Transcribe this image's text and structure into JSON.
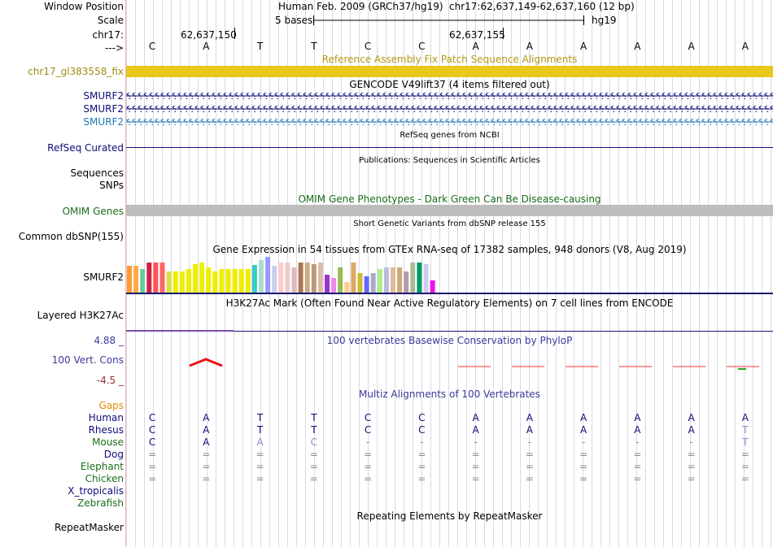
{
  "header": {
    "window_position_label": "Window Position",
    "scale_label": "Scale",
    "chrom_label": "chr17:",
    "arrow_label": "--->",
    "assembly_text": "Human Feb. 2009 (GRCh37/hg19)",
    "position_text": "chr17:62,637,149-62,637,160 (12 bp)",
    "scale_text": "5 bases",
    "scale_db": "hg19",
    "coord_1": "62,637,150",
    "coord_2": "62,637,155"
  },
  "sequence": [
    "C",
    "A",
    "T",
    "T",
    "C",
    "C",
    "A",
    "A",
    "A",
    "A",
    "A",
    "A"
  ],
  "tracks": {
    "fix_patch": {
      "title": "Reference Assembly Fix Patch Sequence Alignments",
      "label": "chr17_gl383558_fix",
      "color": "#e8c81c"
    },
    "gencode": {
      "title": "GENCODE V49lift37 (4 items filtered out)",
      "items": [
        "SMURF2",
        "SMURF2",
        "SMURF2"
      ],
      "colors": [
        "#0c0c78",
        "#0c0c78",
        "#1e78b4"
      ]
    },
    "refseq": {
      "title": "RefSeq genes from NCBI",
      "label": "RefSeq Curated"
    },
    "publications": {
      "title": "Publications: Sequences in Scientific Articles",
      "labels": [
        "Sequences",
        "SNPs"
      ]
    },
    "omim": {
      "title": "OMIM Gene Phenotypes - Dark Green Can Be Disease-causing",
      "label": "OMIM Genes"
    },
    "dbsnp": {
      "title": "Short Genetic Variants from dbSNP release 155",
      "label": "Common dbSNP(155)"
    },
    "gtex": {
      "title": "Gene Expression in 54 tissues from GTEx RNA-seq of 17382 samples, 948 donors (V8, Aug 2019)",
      "label": "SMURF2",
      "bars": [
        {
          "v": 0.75,
          "c": "#ff9933"
        },
        {
          "v": 0.75,
          "c": "#ffaa44"
        },
        {
          "v": 0.65,
          "c": "#66cc99"
        },
        {
          "v": 0.85,
          "c": "#cc2244"
        },
        {
          "v": 0.85,
          "c": "#ff5555"
        },
        {
          "v": 0.85,
          "c": "#ff6666"
        },
        {
          "v": 0.6,
          "c": "#dddd44"
        },
        {
          "v": 0.6,
          "c": "#eeee00"
        },
        {
          "v": 0.6,
          "c": "#eeee00"
        },
        {
          "v": 0.65,
          "c": "#eeee00"
        },
        {
          "v": 0.8,
          "c": "#eeee00"
        },
        {
          "v": 0.85,
          "c": "#eeee00"
        },
        {
          "v": 0.7,
          "c": "#eeee00"
        },
        {
          "v": 0.6,
          "c": "#eeee00"
        },
        {
          "v": 0.65,
          "c": "#eeee00"
        },
        {
          "v": 0.65,
          "c": "#eeee00"
        },
        {
          "v": 0.65,
          "c": "#eeee00"
        },
        {
          "v": 0.65,
          "c": "#eeee00"
        },
        {
          "v": 0.65,
          "c": "#eeee00"
        },
        {
          "v": 0.78,
          "c": "#33cccc"
        },
        {
          "v": 0.9,
          "c": "#aaddcc"
        },
        {
          "v": 1.0,
          "c": "#9999ff"
        },
        {
          "v": 0.75,
          "c": "#ccccee"
        },
        {
          "v": 0.85,
          "c": "#ffcccc"
        },
        {
          "v": 0.85,
          "c": "#eecccc"
        },
        {
          "v": 0.7,
          "c": "#ddbbbb"
        },
        {
          "v": 0.85,
          "c": "#aa7755"
        },
        {
          "v": 0.85,
          "c": "#ccaa88"
        },
        {
          "v": 0.8,
          "c": "#bb9977"
        },
        {
          "v": 0.85,
          "c": "#ddbbaa"
        },
        {
          "v": 0.5,
          "c": "#9933cc"
        },
        {
          "v": 0.4,
          "c": "#ee88ee"
        },
        {
          "v": 0.7,
          "c": "#99bb55"
        },
        {
          "v": 0.3,
          "c": "#ffcc88"
        },
        {
          "v": 0.85,
          "c": "#ddaa66"
        },
        {
          "v": 0.55,
          "c": "#ccbb33"
        },
        {
          "v": 0.45,
          "c": "#6666ff"
        },
        {
          "v": 0.55,
          "c": "#aaaacc"
        },
        {
          "v": 0.65,
          "c": "#aaee88"
        },
        {
          "v": 0.7,
          "c": "#bbbbdd"
        },
        {
          "v": 0.7,
          "c": "#ddbb99"
        },
        {
          "v": 0.7,
          "c": "#ccaa77"
        },
        {
          "v": 0.6,
          "c": "#bb99aa"
        },
        {
          "v": 0.85,
          "c": "#aabb99"
        },
        {
          "v": 0.85,
          "c": "#009966"
        },
        {
          "v": 0.8,
          "c": "#ccccee"
        },
        {
          "v": 0.35,
          "c": "#ee11ee"
        }
      ]
    },
    "h3k27ac": {
      "title": "H3K27Ac Mark (Often Found Near Active Regulatory Elements) on 7 cell lines from ENCODE",
      "label": "Layered H3K27Ac"
    },
    "phylop": {
      "title": "100 vertebrates Basewise Conservation by PhyloP",
      "label": "100 Vert. Cons",
      "max": "4.88 _",
      "min": "-4.5 _"
    },
    "multiz": {
      "title": "Multiz Alignments of 100 Vertebrates",
      "gaps_label": "Gaps",
      "species": [
        {
          "name": "Human",
          "color": "#0c0c78",
          "seq": [
            "C",
            "A",
            "T",
            "T",
            "C",
            "C",
            "A",
            "A",
            "A",
            "A",
            "A",
            "A"
          ]
        },
        {
          "name": "Rhesus",
          "color": "#0c0c78",
          "seq": [
            "C",
            "A",
            "T",
            "T",
            "C",
            "C",
            "A",
            "A",
            "A",
            "A",
            "A",
            "T"
          ]
        },
        {
          "name": "Mouse",
          "color": "#1a6e1a",
          "seq": [
            "C",
            "A",
            "A",
            "C",
            "-",
            "-",
            "-",
            "-",
            "-",
            "-",
            "-",
            "T"
          ]
        },
        {
          "name": "Dog",
          "color": "#0c0c78",
          "seq": [
            "=",
            "=",
            "=",
            "=",
            "=",
            "=",
            "=",
            "=",
            "=",
            "=",
            "=",
            "="
          ]
        },
        {
          "name": "Elephant",
          "color": "#1a6e1a",
          "seq": [
            "=",
            "=",
            "=",
            "=",
            "=",
            "=",
            "=",
            "=",
            "=",
            "=",
            "=",
            "="
          ]
        },
        {
          "name": "Chicken",
          "color": "#1a6e1a",
          "seq": [
            "=",
            "=",
            "=",
            "=",
            "=",
            "=",
            "=",
            "=",
            "=",
            "=",
            "=",
            "="
          ]
        },
        {
          "name": "X_tropicalis",
          "color": "#0c0c78",
          "seq": []
        },
        {
          "name": "Zebrafish",
          "color": "#1a6e1a",
          "seq": []
        }
      ]
    },
    "repeatmasker": {
      "title": "Repeating Elements by RepeatMasker",
      "label": "RepeatMasker"
    }
  }
}
